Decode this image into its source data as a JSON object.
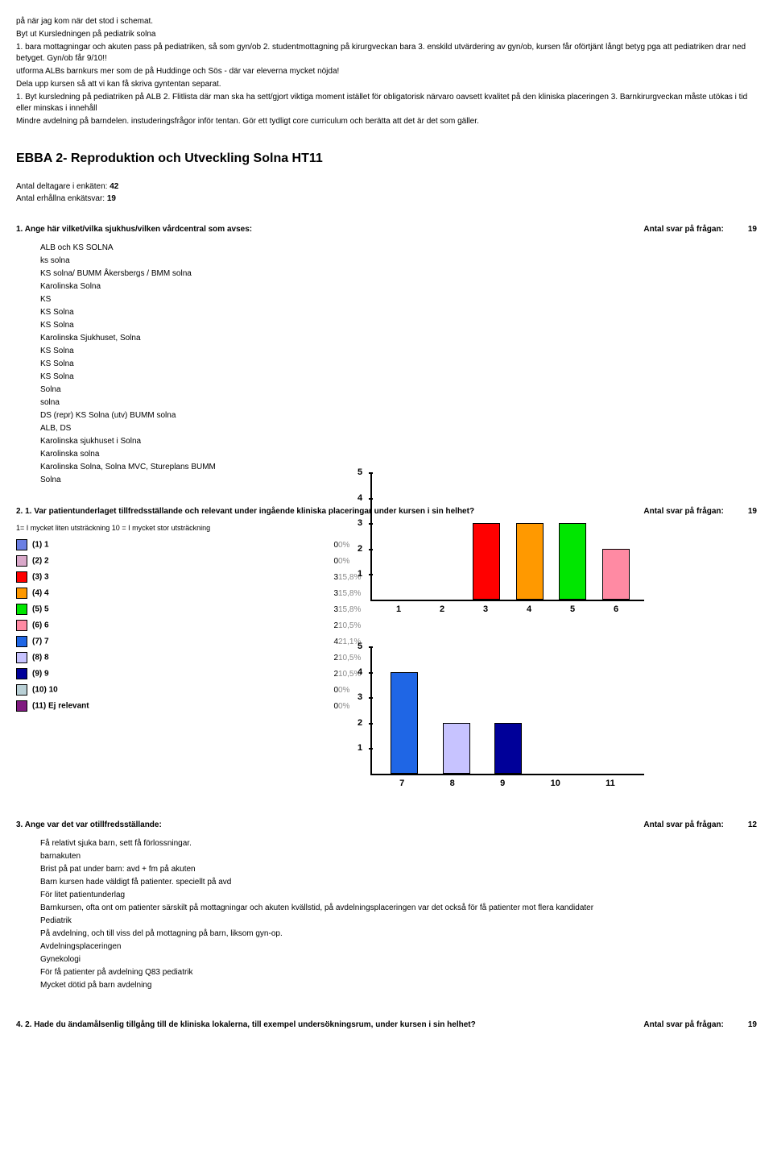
{
  "intro_lines": [
    "på när jag kom när det stod i schemat.",
    "Byt ut Kursledningen på pediatrik solna",
    "1. bara mottagningar och akuten pass på pediatriken, så som gyn/ob 2. studentmottagning på kirurgveckan bara 3. enskild utvärdering av gyn/ob, kursen får oförtjänt långt betyg pga att pediatriken drar ned betyget. Gyn/ob får 9/10!!",
    "utforma ALBs barnkurs mer som de på Huddinge och Sös - där var eleverna mycket nöjda!",
    "Dela upp kursen så att vi kan få skriva gyntentan separat.",
    "1. Byt kursledning på pediatriken på ALB 2. Flitlista där man ska ha sett/gjort viktiga moment istället för obligatorisk närvaro oavsett kvalitet på den kliniska placeringen 3. Barnkirurgveckan måste utökas i tid eller minskas i innehåll",
    "Mindre avdelning på barndelen. instuderingsfrågor inför tentan. Gör ett tydligt core curriculum och berätta att det är det som gäller."
  ],
  "title": "EBBA 2- Reproduktion och Utveckling Solna HT11",
  "meta": {
    "participants_label": "Antal deltagare i enkäten:",
    "participants_value": "42",
    "responses_label": "Antal erhållna enkätsvar:",
    "responses_value": "19"
  },
  "answers_label": "Antal svar på frågan:",
  "q1": {
    "text": "1. Ange här vilket/vilka sjukhus/vilken vårdcentral som avses:",
    "count": "19",
    "items": [
      "ALB och KS SOLNA",
      "ks solna",
      "KS solna/ BUMM Åkersbergs / BMM solna",
      "Karolinska Solna",
      "KS",
      "KS Solna",
      "KS Solna",
      "Karolinska Sjukhuset, Solna",
      "KS Solna",
      "KS Solna",
      "KS Solna",
      "Solna",
      "solna",
      "DS (repr) KS Solna (utv) BUMM solna",
      "ALB, DS",
      "Karolinska sjukhuset i Solna",
      "Karolinska solna",
      "Karolinska Solna, Solna MVC, Stureplans BUMM",
      "Solna"
    ]
  },
  "q2": {
    "text": "2. 1. Var patientunderlaget tillfredsställande och relevant under ingående kliniska placeringar under kursen i sin helhet?",
    "count": "19",
    "scale_note": "1= I mycket liten utsträckning 10 = I mycket stor utsträckning",
    "rows": [
      {
        "key": "(1)",
        "label": "1",
        "n": "0",
        "pct": "0%",
        "color": "#6b7fe3"
      },
      {
        "key": "(2)",
        "label": "2",
        "n": "0",
        "pct": "0%",
        "color": "#d9a8c9"
      },
      {
        "key": "(3)",
        "label": "3",
        "n": "3",
        "pct": "15,8%",
        "color": "#ff0000"
      },
      {
        "key": "(4)",
        "label": "4",
        "n": "3",
        "pct": "15,8%",
        "color": "#ff9900"
      },
      {
        "key": "(5)",
        "label": "5",
        "n": "3",
        "pct": "15,8%",
        "color": "#00e600"
      },
      {
        "key": "(6)",
        "label": "6",
        "n": "2",
        "pct": "10,5%",
        "color": "#ff8aa3"
      },
      {
        "key": "(7)",
        "label": "7",
        "n": "4",
        "pct": "21,1%",
        "color": "#1f66e5"
      },
      {
        "key": "(8)",
        "label": "8",
        "n": "2",
        "pct": "10,5%",
        "color": "#c7c3ff"
      },
      {
        "key": "(9)",
        "label": "9",
        "n": "2",
        "pct": "10,5%",
        "color": "#000099"
      },
      {
        "key": "(10)",
        "label": "10",
        "n": "0",
        "pct": "0%",
        "color": "#b9d0d6"
      },
      {
        "key": "(11)",
        "label": "Ej relevant",
        "n": "0",
        "pct": "0%",
        "color": "#801a80"
      }
    ],
    "chart1": {
      "ymax": 5,
      "yticks": [
        1,
        2,
        3,
        4,
        5
      ],
      "bars": [
        {
          "x": "1",
          "v": 0,
          "color": "#6b7fe3"
        },
        {
          "x": "2",
          "v": 0,
          "color": "#d9a8c9"
        },
        {
          "x": "3",
          "v": 3,
          "color": "#ff0000"
        },
        {
          "x": "4",
          "v": 3,
          "color": "#ff9900"
        },
        {
          "x": "5",
          "v": 3,
          "color": "#00e600"
        },
        {
          "x": "6",
          "v": 2,
          "color": "#ff8aa3"
        }
      ]
    },
    "chart2": {
      "ymax": 5,
      "yticks": [
        1,
        2,
        3,
        4,
        5
      ],
      "bars": [
        {
          "x": "7",
          "v": 4,
          "color": "#1f66e5"
        },
        {
          "x": "8",
          "v": 2,
          "color": "#c7c3ff"
        },
        {
          "x": "9",
          "v": 2,
          "color": "#000099"
        },
        {
          "x": "10",
          "v": 0,
          "color": "#b9d0d6"
        },
        {
          "x": "11",
          "v": 0,
          "color": "#801a80"
        }
      ]
    }
  },
  "q3": {
    "text": "3. Ange var det var otillfredsställande:",
    "count": "12",
    "items": [
      "Få relativt sjuka barn, sett få förlossningar.",
      "barnakuten",
      "Brist på pat under barn: avd + fm på akuten",
      "Barn kursen hade väldigt få patienter. speciellt på avd",
      "För litet patientunderlag",
      "Barnkursen, ofta ont om patienter särskilt på mottagningar och akuten kvällstid, på avdelningsplaceringen var det också för få patienter mot flera kandidater",
      "Pediatrik",
      "På avdelning, och till viss del på mottagning på barn, liksom gyn-op.",
      "Avdelningsplaceringen",
      "Gynekologi",
      "För få patienter på avdelning Q83 pediatrik",
      "Mycket dötid på barn avdelning"
    ]
  },
  "q4": {
    "text": "4. 2. Hade du ändamålsenlig tillgång till de kliniska lokalerna, till exempel undersökningsrum, under kursen i sin helhet?",
    "count": "19"
  }
}
